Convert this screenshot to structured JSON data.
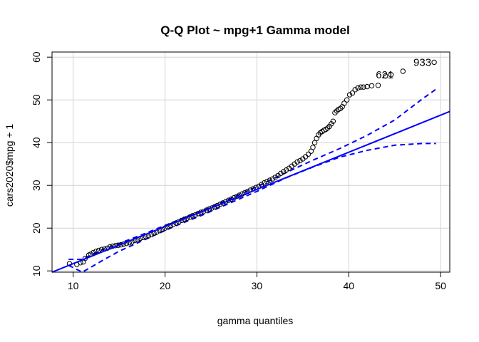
{
  "chart_data": {
    "type": "scatter",
    "title": "Q-Q Plot ~ mpg+1 Gamma model",
    "xlabel": "gamma quantiles",
    "ylabel": "cars2020$mpg + 1",
    "xlim": [
      7.7,
      51.0
    ],
    "ylim": [
      9.7,
      61.2
    ],
    "x_ticks": [
      10,
      20,
      30,
      40,
      50
    ],
    "y_ticks": [
      10,
      20,
      30,
      40,
      50,
      60
    ],
    "grid": true,
    "annotations": [
      {
        "text": "933",
        "x": 49.3,
        "y": 58.8
      },
      {
        "text": "621",
        "x": 45.2,
        "y": 55.9
      }
    ],
    "reference_line": {
      "x": [
        7.7,
        51.0
      ],
      "y": [
        9.7,
        47.3
      ],
      "color": "#0000ff"
    },
    "confidence_band": {
      "color": "#0000ff",
      "upper": {
        "x": [
          9.5,
          11,
          13,
          15,
          18,
          21,
          24,
          27,
          30,
          33,
          36,
          39,
          42,
          45,
          48,
          49.5
        ],
        "y": [
          12.7,
          12.7,
          14.8,
          16.4,
          18.9,
          21.5,
          24.0,
          26.8,
          29.7,
          32.8,
          35.8,
          38.6,
          41.7,
          45.3,
          50.2,
          52.5
        ]
      },
      "lower": {
        "x": [
          9.5,
          11,
          13,
          15,
          18,
          21,
          24,
          27,
          30,
          33,
          36,
          39,
          42,
          45,
          48,
          49.5
        ],
        "y": [
          11.3,
          9.7,
          12.2,
          14.6,
          17.5,
          20.4,
          23.0,
          25.8,
          28.6,
          31.6,
          34.2,
          36.6,
          38.2,
          39.4,
          39.8,
          39.8
        ]
      }
    },
    "series": [
      {
        "points": [
          [
            9.6,
            11.7
          ],
          [
            10.4,
            11.5
          ],
          [
            10.8,
            11.9
          ],
          [
            11.1,
            12.1
          ],
          [
            11.3,
            12.9
          ],
          [
            11.7,
            13.7
          ],
          [
            11.9,
            13.9
          ],
          [
            12.2,
            14.3
          ],
          [
            12.5,
            14.6
          ],
          [
            12.8,
            14.8
          ],
          [
            13.1,
            15.0
          ],
          [
            13.4,
            15.1
          ],
          [
            13.7,
            15.3
          ],
          [
            14.0,
            15.6
          ],
          [
            14.3,
            15.8
          ],
          [
            14.6,
            15.9
          ],
          [
            14.9,
            16.0
          ],
          [
            15.2,
            16.1
          ],
          [
            15.5,
            16.3
          ],
          [
            15.8,
            16.4
          ],
          [
            16.1,
            16.6
          ],
          [
            16.4,
            16.8
          ],
          [
            16.7,
            17.1
          ],
          [
            17.0,
            17.3
          ],
          [
            17.3,
            17.6
          ],
          [
            17.6,
            17.8
          ],
          [
            17.9,
            18.0
          ],
          [
            18.2,
            18.2
          ],
          [
            18.5,
            18.5
          ],
          [
            18.8,
            18.8
          ],
          [
            19.1,
            19.1
          ],
          [
            19.4,
            19.4
          ],
          [
            19.7,
            19.7
          ],
          [
            20.0,
            20.0
          ],
          [
            20.3,
            20.3
          ],
          [
            20.6,
            20.6
          ],
          [
            20.9,
            20.9
          ],
          [
            21.2,
            21.2
          ],
          [
            21.5,
            21.5
          ],
          [
            21.8,
            21.8
          ],
          [
            22.1,
            22.1
          ],
          [
            22.4,
            22.3
          ],
          [
            22.7,
            22.6
          ],
          [
            23.0,
            22.9
          ],
          [
            23.3,
            23.1
          ],
          [
            23.6,
            23.4
          ],
          [
            23.9,
            23.7
          ],
          [
            24.2,
            23.9
          ],
          [
            24.5,
            24.2
          ],
          [
            24.8,
            24.5
          ],
          [
            25.1,
            24.7
          ],
          [
            25.4,
            25.0
          ],
          [
            25.7,
            25.3
          ],
          [
            26.0,
            25.6
          ],
          [
            26.3,
            25.9
          ],
          [
            26.6,
            26.2
          ],
          [
            26.9,
            26.5
          ],
          [
            27.2,
            26.8
          ],
          [
            27.5,
            27.1
          ],
          [
            27.8,
            27.4
          ],
          [
            28.1,
            27.7
          ],
          [
            28.4,
            28.0
          ],
          [
            28.7,
            28.3
          ],
          [
            29.0,
            28.6
          ],
          [
            29.3,
            28.9
          ],
          [
            29.6,
            29.2
          ],
          [
            29.9,
            29.5
          ],
          [
            30.2,
            29.8
          ],
          [
            30.5,
            30.2
          ],
          [
            30.8,
            30.6
          ],
          [
            31.1,
            30.9
          ],
          [
            31.4,
            31.2
          ],
          [
            31.7,
            31.5
          ],
          [
            32.0,
            31.9
          ],
          [
            32.3,
            32.3
          ],
          [
            32.6,
            32.8
          ],
          [
            32.9,
            33.2
          ],
          [
            33.2,
            33.6
          ],
          [
            33.5,
            34.0
          ],
          [
            33.8,
            34.5
          ],
          [
            34.1,
            35.0
          ],
          [
            34.4,
            35.5
          ],
          [
            34.7,
            35.8
          ],
          [
            35.0,
            36.2
          ],
          [
            35.3,
            36.7
          ],
          [
            35.6,
            37.3
          ],
          [
            35.9,
            38.0
          ],
          [
            36.1,
            38.9
          ],
          [
            36.3,
            40.0
          ],
          [
            36.5,
            41.0
          ],
          [
            36.7,
            41.8
          ],
          [
            36.9,
            42.3
          ],
          [
            37.1,
            42.6
          ],
          [
            37.3,
            42.9
          ],
          [
            37.5,
            43.1
          ],
          [
            37.7,
            43.4
          ],
          [
            37.9,
            43.8
          ],
          [
            38.1,
            44.4
          ],
          [
            38.3,
            45.0
          ],
          [
            38.5,
            47.0
          ],
          [
            38.7,
            47.4
          ],
          [
            38.9,
            47.8
          ],
          [
            39.1,
            48.0
          ],
          [
            39.3,
            48.4
          ],
          [
            39.5,
            49.2
          ],
          [
            39.8,
            50.0
          ],
          [
            40.1,
            51.2
          ],
          [
            40.4,
            51.6
          ],
          [
            40.7,
            52.4
          ],
          [
            41.0,
            52.8
          ],
          [
            41.3,
            53.0
          ],
          [
            41.6,
            53.0
          ],
          [
            42.0,
            53.1
          ],
          [
            42.5,
            53.3
          ],
          [
            43.2,
            53.4
          ],
          [
            44.0,
            55.6
          ],
          [
            44.6,
            55.9
          ],
          [
            45.9,
            56.7
          ],
          [
            49.3,
            58.8
          ]
        ]
      }
    ]
  }
}
